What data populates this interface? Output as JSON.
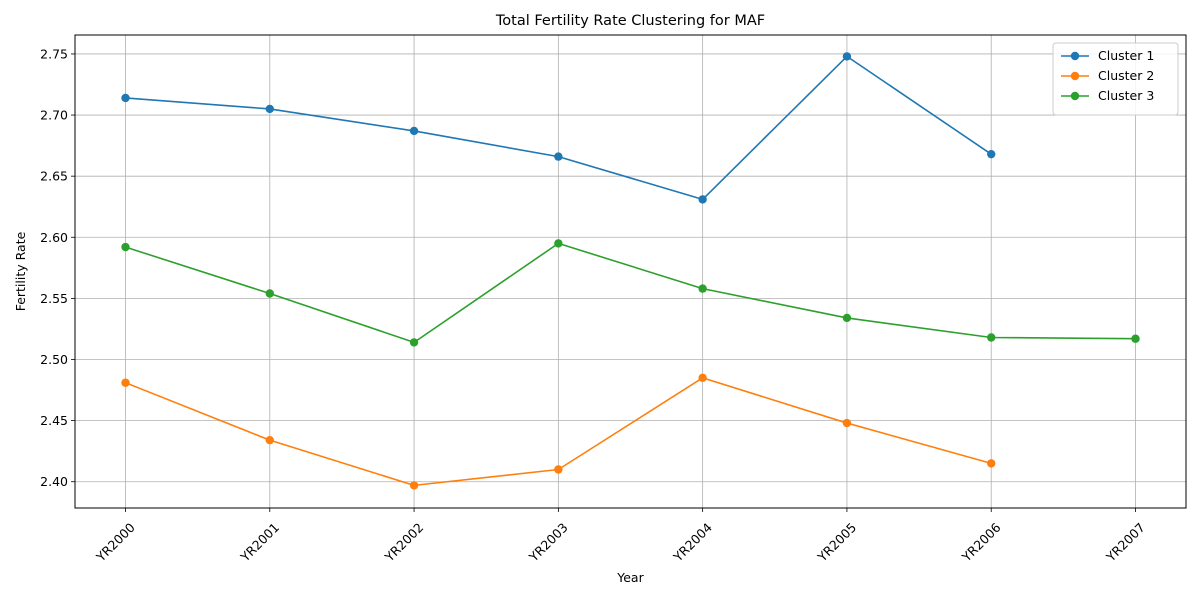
{
  "chart_data": {
    "type": "line",
    "title": "Total Fertility Rate Clustering for MAF",
    "xlabel": "Year",
    "ylabel": "Fertility Rate",
    "categories": [
      "YR2000",
      "YR2001",
      "YR2002",
      "YR2003",
      "YR2004",
      "YR2005",
      "YR2006",
      "YR2007"
    ],
    "yticks": [
      "2.40",
      "2.45",
      "2.50",
      "2.55",
      "2.60",
      "2.65",
      "2.70",
      "2.75"
    ],
    "ylim": [
      2.3785,
      2.7655
    ],
    "grid": true,
    "legend_position": "top-right",
    "series": [
      {
        "name": "Cluster 1",
        "color": "#1f77b4",
        "values": [
          2.714,
          2.705,
          2.687,
          2.666,
          2.631,
          2.748,
          2.668,
          null
        ]
      },
      {
        "name": "Cluster 2",
        "color": "#ff7f0e",
        "values": [
          2.481,
          2.434,
          2.397,
          2.41,
          2.485,
          2.448,
          2.415,
          null
        ]
      },
      {
        "name": "Cluster 3",
        "color": "#2ca02c",
        "values": [
          2.592,
          2.554,
          2.514,
          2.595,
          2.558,
          2.534,
          2.518,
          2.517
        ]
      }
    ]
  }
}
